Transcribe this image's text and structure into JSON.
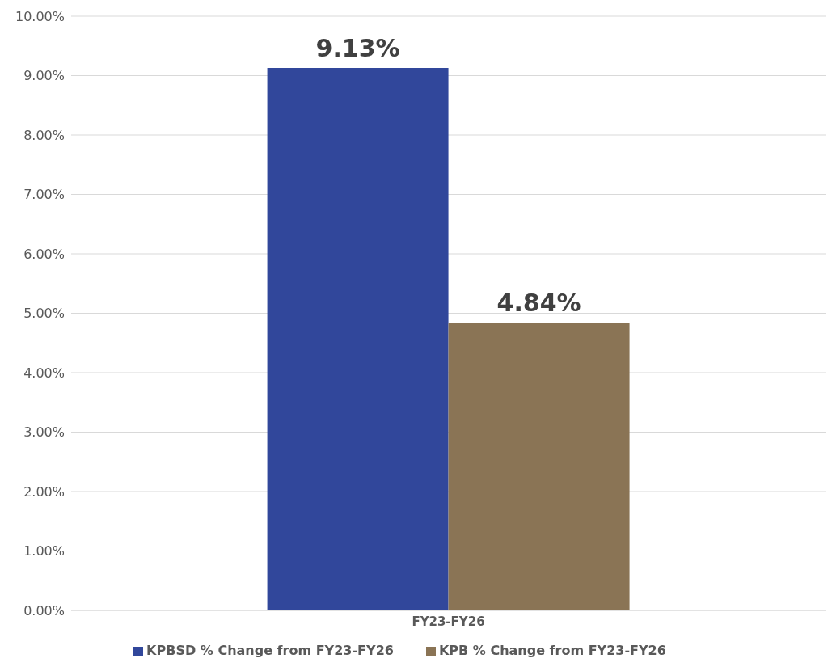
{
  "chart_data": {
    "type": "bar",
    "categories": [
      "FY23-FY26"
    ],
    "series": [
      {
        "name": "KPBSD % Change from FY23-FY26",
        "color": "#31479b",
        "values": [
          9.13
        ],
        "value_labels": [
          "9.13%"
        ]
      },
      {
        "name": "KPB % Change from FY23-FY26",
        "color": "#8a7455",
        "values": [
          4.84
        ],
        "value_labels": [
          "4.84%"
        ]
      }
    ],
    "ylim": [
      0,
      10
    ],
    "yticks": [
      {
        "value": 0,
        "label": "0.00%"
      },
      {
        "value": 1,
        "label": "1.00%"
      },
      {
        "value": 2,
        "label": "2.00%"
      },
      {
        "value": 3,
        "label": "3.00%"
      },
      {
        "value": 4,
        "label": "4.00%"
      },
      {
        "value": 5,
        "label": "5.00%"
      },
      {
        "value": 6,
        "label": "6.00%"
      },
      {
        "value": 7,
        "label": "7.00%"
      },
      {
        "value": 8,
        "label": "8.00%"
      },
      {
        "value": 9,
        "label": "9.00%"
      },
      {
        "value": 10,
        "label": "10.00%"
      }
    ],
    "grid": "y",
    "legend": "bottom"
  }
}
